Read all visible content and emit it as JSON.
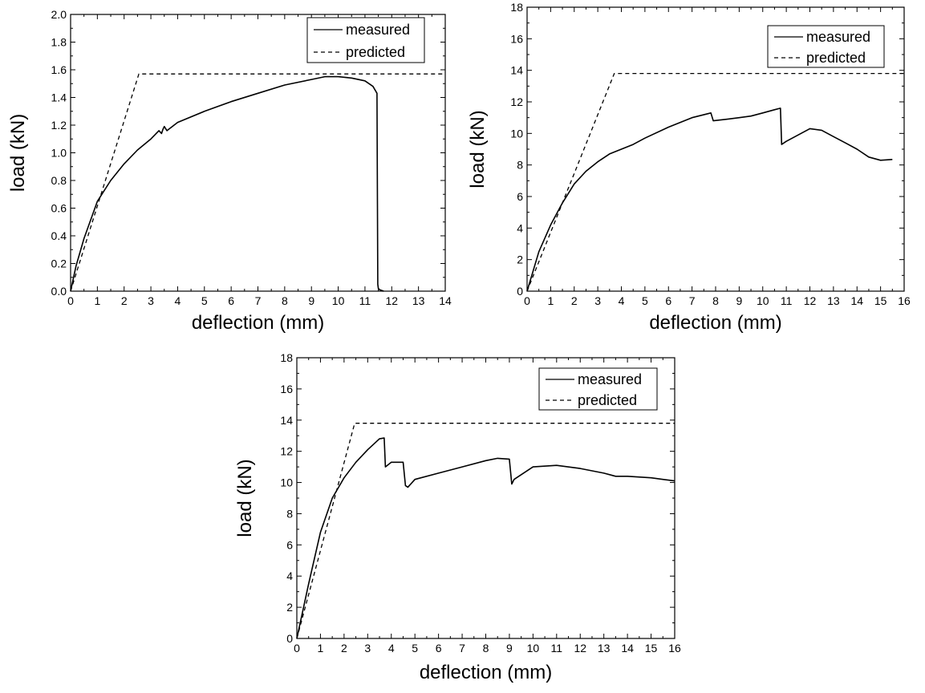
{
  "chart_data": [
    {
      "type": "line",
      "xlabel": "deflection (mm)",
      "ylabel": "load (kN)",
      "xlim": [
        0,
        14
      ],
      "ylim": [
        0,
        2.0
      ],
      "x_ticks": [
        0,
        1,
        2,
        3,
        4,
        5,
        6,
        7,
        8,
        9,
        10,
        11,
        12,
        13,
        14
      ],
      "y_ticks": [
        "0.0",
        "0.2",
        "0.4",
        "0.6",
        "0.8",
        "1.0",
        "1.2",
        "1.4",
        "1.6",
        "1.8",
        "2.0"
      ],
      "legend_position": "top-right",
      "grid": false,
      "series": [
        {
          "name": "measured",
          "style": "solid",
          "x": [
            0,
            0.2,
            0.5,
            1.0,
            1.5,
            2.0,
            2.5,
            3.0,
            3.3,
            3.4,
            3.45,
            3.5,
            3.6,
            4.0,
            5.0,
            6.0,
            7.0,
            8.0,
            9.0,
            9.5,
            10.0,
            10.5,
            11.0,
            11.3,
            11.45,
            11.48,
            11.5,
            11.55,
            11.7
          ],
          "y": [
            0,
            0.18,
            0.38,
            0.65,
            0.8,
            0.92,
            1.02,
            1.1,
            1.16,
            1.14,
            1.17,
            1.19,
            1.16,
            1.22,
            1.3,
            1.37,
            1.43,
            1.49,
            1.53,
            1.55,
            1.55,
            1.54,
            1.52,
            1.48,
            1.43,
            0.05,
            0.02,
            0.01,
            0.0
          ]
        },
        {
          "name": "predicted",
          "style": "dashed",
          "x": [
            0,
            2.55,
            14
          ],
          "y": [
            0,
            1.57,
            1.57
          ]
        }
      ]
    },
    {
      "type": "line",
      "xlabel": "deflection (mm)",
      "ylabel": "load (kN)",
      "xlim": [
        0,
        16
      ],
      "ylim": [
        0,
        18
      ],
      "x_ticks": [
        0,
        1,
        2,
        3,
        4,
        5,
        6,
        7,
        8,
        9,
        10,
        11,
        12,
        13,
        14,
        15,
        16
      ],
      "y_ticks": [
        "0",
        "2",
        "4",
        "6",
        "8",
        "10",
        "12",
        "14",
        "16",
        "18"
      ],
      "legend_position": "top-right",
      "grid": false,
      "series": [
        {
          "name": "measured",
          "style": "solid",
          "x": [
            0,
            0.5,
            1.0,
            1.5,
            2.0,
            2.5,
            3.0,
            3.5,
            4.0,
            4.5,
            5.0,
            6.0,
            7.0,
            7.8,
            7.9,
            8.5,
            9.0,
            9.5,
            10.0,
            10.5,
            10.75,
            10.8,
            11.0,
            12.0,
            12.5,
            13.0,
            13.5,
            14.0,
            14.5,
            15.0,
            15.5
          ],
          "y": [
            0,
            2.5,
            4.2,
            5.6,
            6.8,
            7.6,
            8.2,
            8.7,
            9.0,
            9.3,
            9.7,
            10.4,
            11.0,
            11.3,
            10.8,
            10.9,
            11.0,
            11.1,
            11.3,
            11.5,
            11.6,
            9.3,
            9.5,
            10.3,
            10.2,
            9.8,
            9.4,
            9.0,
            8.5,
            8.3,
            8.35
          ]
        },
        {
          "name": "predicted",
          "style": "dashed",
          "x": [
            0,
            3.7,
            16
          ],
          "y": [
            0,
            13.8,
            13.8
          ]
        }
      ]
    },
    {
      "type": "line",
      "xlabel": "deflection (mm)",
      "ylabel": "load (kN)",
      "xlim": [
        0,
        16
      ],
      "ylim": [
        0,
        18
      ],
      "x_ticks": [
        0,
        1,
        2,
        3,
        4,
        5,
        6,
        7,
        8,
        9,
        10,
        11,
        12,
        13,
        14,
        15,
        16
      ],
      "y_ticks": [
        "0",
        "2",
        "4",
        "6",
        "8",
        "10",
        "12",
        "14",
        "16",
        "18"
      ],
      "legend_position": "top-right",
      "grid": false,
      "series": [
        {
          "name": "measured",
          "style": "solid",
          "x": [
            0,
            0.5,
            1.0,
            1.5,
            2.0,
            2.5,
            3.0,
            3.5,
            3.7,
            3.75,
            4.0,
            4.5,
            4.6,
            4.7,
            5.0,
            6.0,
            7.0,
            8.0,
            8.5,
            9.0,
            9.1,
            9.2,
            10.0,
            11.0,
            12.0,
            13.0,
            13.5,
            14.0,
            15.0,
            15.5,
            16.0
          ],
          "y": [
            0,
            3.5,
            6.8,
            9.0,
            10.3,
            11.3,
            12.1,
            12.8,
            12.85,
            11.0,
            11.3,
            11.3,
            9.8,
            9.7,
            10.2,
            10.6,
            11.0,
            11.4,
            11.55,
            11.5,
            9.9,
            10.2,
            11.0,
            11.1,
            10.9,
            10.6,
            10.4,
            10.4,
            10.3,
            10.2,
            10.1
          ]
        },
        {
          "name": "predicted",
          "style": "dashed",
          "x": [
            0,
            2.45,
            16
          ],
          "y": [
            0,
            13.8,
            13.8
          ]
        }
      ]
    }
  ]
}
